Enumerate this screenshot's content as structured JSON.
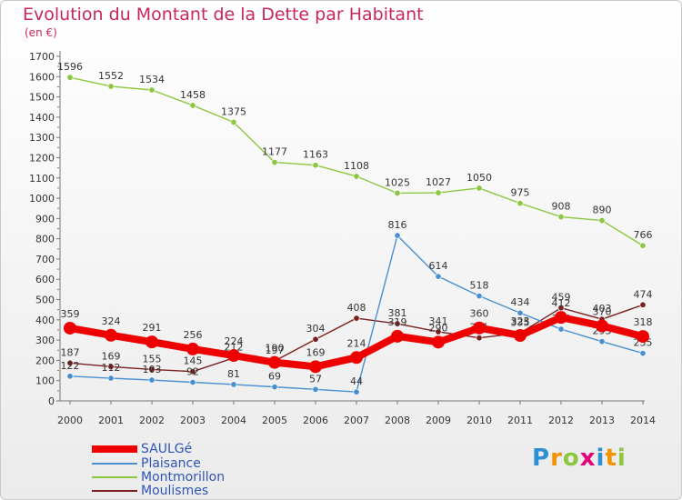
{
  "chart_data": {
    "type": "line",
    "title": "Evolution du Montant de la Dette par Habitant",
    "unit_label": "(en €)",
    "ylim": [
      0,
      1700
    ],
    "y_ticks": [
      0,
      100,
      200,
      300,
      400,
      500,
      600,
      700,
      800,
      900,
      1000,
      1100,
      1200,
      1300,
      1400,
      1500,
      1600,
      1700
    ],
    "categories": [
      "2000",
      "2001",
      "2002",
      "2003",
      "2004",
      "2005",
      "2006",
      "2007",
      "2008",
      "2009",
      "2010",
      "2011",
      "2012",
      "2013",
      "2014"
    ],
    "grid": false,
    "legend_position": "bottom-left",
    "series": [
      {
        "name": "SAULGé",
        "color": "#ee0000",
        "values": [
          359,
          324,
          291,
          256,
          224,
          190,
          169,
          214,
          319,
          290,
          360,
          323,
          412,
          370,
          318
        ]
      },
      {
        "name": "Plaisance",
        "color": "#4a90d0",
        "values": [
          122,
          112,
          103,
          92,
          81,
          69,
          57,
          44,
          816,
          614,
          518,
          434,
          354,
          293,
          235
        ]
      },
      {
        "name": "Montmorillon",
        "color": "#8dc63f",
        "values": [
          1596,
          1552,
          1534,
          1458,
          1375,
          1177,
          1163,
          1108,
          1025,
          1027,
          1050,
          975,
          908,
          890,
          766
        ]
      },
      {
        "name": "Moulismes",
        "color": "#7a2020",
        "values": [
          187,
          169,
          155,
          145,
          212,
          197,
          304,
          408,
          381,
          341,
          311,
          335,
          459,
          403,
          474
        ]
      }
    ]
  },
  "logo": {
    "letters": [
      {
        "ch": "P",
        "color": "#2d8fd4"
      },
      {
        "ch": "r",
        "color": "#f39200"
      },
      {
        "ch": "o",
        "color": "#8dc63f"
      },
      {
        "ch": "x",
        "color": "#e3007a"
      },
      {
        "ch": "i",
        "color": "#2d8fd4"
      },
      {
        "ch": "t",
        "color": "#f39200"
      },
      {
        "ch": "i",
        "color": "#8dc63f"
      }
    ]
  }
}
